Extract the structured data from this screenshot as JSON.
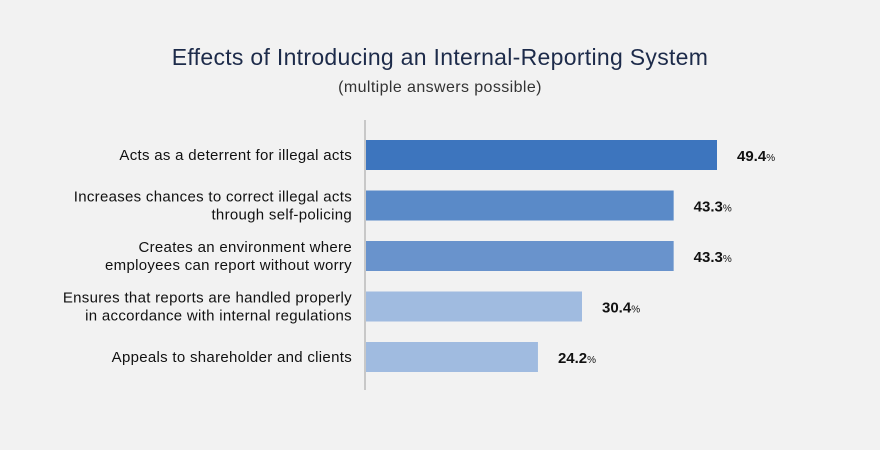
{
  "chart_data": {
    "type": "bar",
    "orientation": "horizontal",
    "title": "Effects of Introducing an Internal-Reporting System",
    "subtitle": "(multiple answers possible)",
    "unit": "%",
    "categories": [
      [
        "Acts as a deterrent for illegal acts"
      ],
      [
        "Increases chances to correct illegal acts",
        "through self-policing"
      ],
      [
        "Creates an environment where",
        "employees can report without worry"
      ],
      [
        "Ensures that reports are handled properly",
        "in accordance with internal regulations"
      ],
      [
        "Appeals to shareholder and clients"
      ]
    ],
    "values": [
      49.4,
      43.3,
      43.3,
      30.4,
      24.2
    ],
    "value_labels": [
      "49.4",
      "43.3",
      "43.3",
      "30.4",
      "24.2"
    ],
    "bar_colors": [
      "#3d75be",
      "#5a8ac8",
      "#6993cc",
      "#a0bbe0",
      "#a0bbe0"
    ],
    "xlim": [
      0,
      60
    ],
    "grid": false,
    "legend": "none"
  }
}
